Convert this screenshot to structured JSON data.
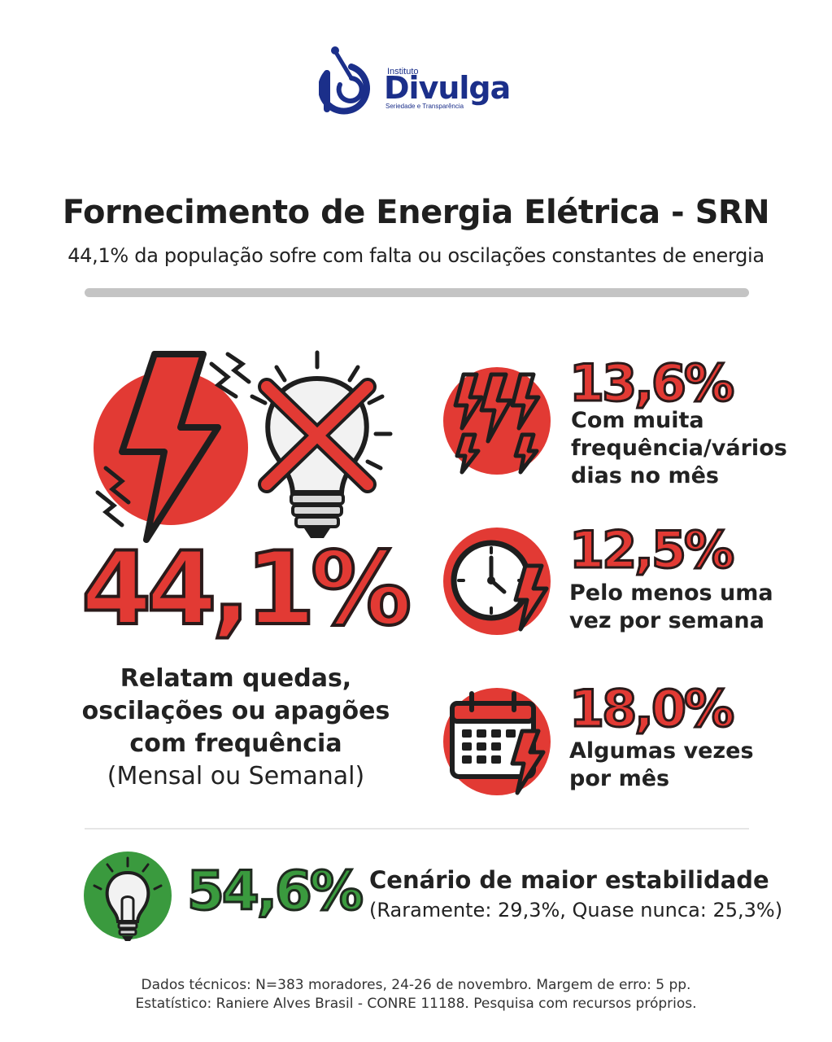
{
  "logo": {
    "top_text": "Instituto",
    "name": "Divulga",
    "tagline": "Seriedade e Transparência",
    "color": "#1b2f8a"
  },
  "header": {
    "title": "Fornecimento de Energia Elétrica - SRN",
    "subtitle": "44,1% da população sofre com falta ou oscilações constantes de energia"
  },
  "main_stat": {
    "value": "44,1%",
    "description_lines": [
      "Relatam quedas,",
      "oscilações ou apagões",
      "com frequência",
      "(Mensal ou Semanal)"
    ],
    "icons": [
      "lightning-bolt-icon",
      "crossed-lightbulb-icon"
    ]
  },
  "breakdown": [
    {
      "value": "13,6%",
      "label": "Com muita\nfrequência/vários\ndias no mês",
      "icon": "multiple-lightning-icon"
    },
    {
      "value": "12,5%",
      "label": "Pelo menos uma\nvez por semana",
      "icon": "clock-lightning-icon"
    },
    {
      "value": "18,0%",
      "label": "Algumas vezes\npor mês",
      "icon": "calendar-lightning-icon"
    }
  ],
  "stable": {
    "value": "54,6%",
    "title": "Cenário de maior estabilidade",
    "subtitle": "(Raramente: 29,3%, Quase nunca: 25,3%)",
    "icon": "lightbulb-icon"
  },
  "footer": {
    "line1": "Dados técnicos: N=383 moradores, 24-26 de novembro. Margem de erro: 5 pp.",
    "line2": "Estatístico: Raniere Alves Brasil - CONRE 11188. Pesquisa com recursos próprios."
  },
  "colors": {
    "red": "#e23a34",
    "green": "#3a9a3e",
    "dark": "#222222",
    "grey": "#c4c4c4"
  }
}
